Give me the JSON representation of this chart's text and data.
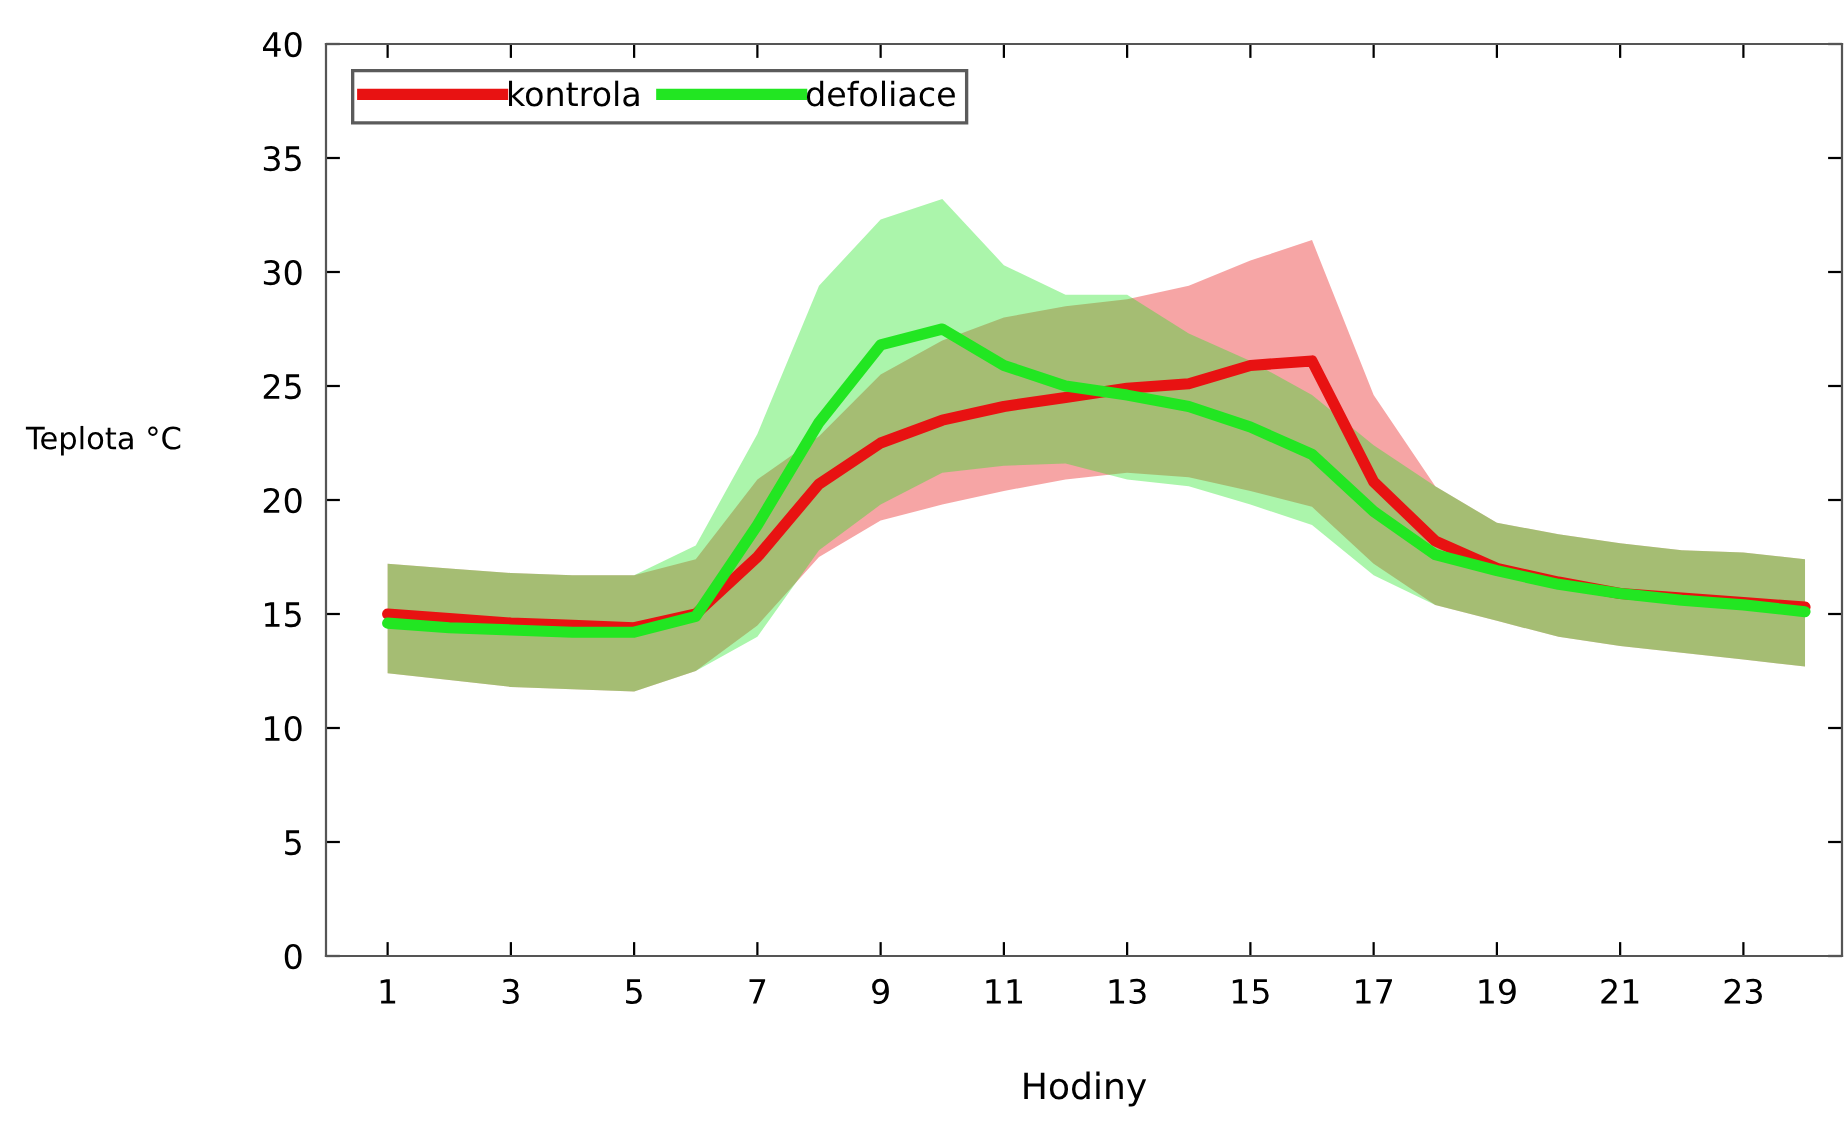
{
  "chart_data": {
    "type": "line",
    "xlabel": "Hodiny",
    "ylabel": "Teplota °C",
    "x": [
      1,
      2,
      3,
      4,
      5,
      6,
      7,
      8,
      9,
      10,
      11,
      12,
      13,
      14,
      15,
      16,
      17,
      18,
      19,
      20,
      21,
      22,
      23,
      24
    ],
    "xlim": [
      0,
      24.6
    ],
    "xticks": [
      1,
      3,
      5,
      7,
      9,
      11,
      13,
      15,
      17,
      19,
      21,
      23
    ],
    "ylim": [
      0,
      40
    ],
    "yticks": [
      0,
      5,
      10,
      15,
      20,
      25,
      30,
      35,
      40
    ],
    "legend": "top left",
    "grid": false,
    "marker": "none",
    "line_style": "solid",
    "series": [
      {
        "name": "kontrola",
        "color": "#e81212",
        "values": [
          15.0,
          14.8,
          14.6,
          14.5,
          14.4,
          15.0,
          17.5,
          20.7,
          22.5,
          23.5,
          24.1,
          24.5,
          24.9,
          25.1,
          25.9,
          26.1,
          20.8,
          18.2,
          17.0,
          16.4,
          15.9,
          15.7,
          15.5,
          15.3
        ],
        "upper": [
          17.2,
          17.0,
          16.8,
          16.7,
          16.7,
          17.4,
          20.9,
          22.8,
          25.5,
          27.0,
          28.0,
          28.5,
          28.8,
          29.4,
          30.5,
          31.4,
          24.6,
          20.6,
          19.0,
          18.5,
          18.1,
          17.8,
          17.7,
          17.4
        ],
        "lower": [
          12.4,
          12.1,
          11.8,
          11.7,
          11.6,
          12.5,
          14.5,
          17.5,
          19.1,
          19.8,
          20.4,
          20.9,
          21.2,
          21.0,
          20.4,
          19.7,
          17.2,
          15.4,
          14.7,
          14.0,
          13.6,
          13.3,
          13.0,
          12.7
        ]
      },
      {
        "name": "defoliace",
        "color": "#22e622",
        "values": [
          14.6,
          14.4,
          14.3,
          14.2,
          14.2,
          14.9,
          18.9,
          23.4,
          26.8,
          27.5,
          25.9,
          25.0,
          24.6,
          24.1,
          23.2,
          22.0,
          19.5,
          17.6,
          16.9,
          16.3,
          15.9,
          15.6,
          15.4,
          15.1
        ],
        "upper": [
          17.2,
          17.0,
          16.8,
          16.7,
          16.7,
          18.0,
          22.9,
          29.4,
          32.3,
          33.2,
          30.3,
          29.0,
          29.0,
          27.3,
          26.1,
          24.6,
          22.4,
          20.6,
          19.0,
          18.5,
          18.1,
          17.8,
          17.7,
          17.4
        ],
        "lower": [
          12.4,
          12.1,
          11.8,
          11.7,
          11.6,
          12.5,
          14.0,
          17.8,
          19.8,
          21.2,
          21.5,
          21.6,
          20.9,
          20.6,
          19.8,
          18.9,
          16.7,
          15.4,
          14.7,
          14.0,
          13.6,
          13.3,
          13.0,
          12.7
        ]
      }
    ]
  }
}
